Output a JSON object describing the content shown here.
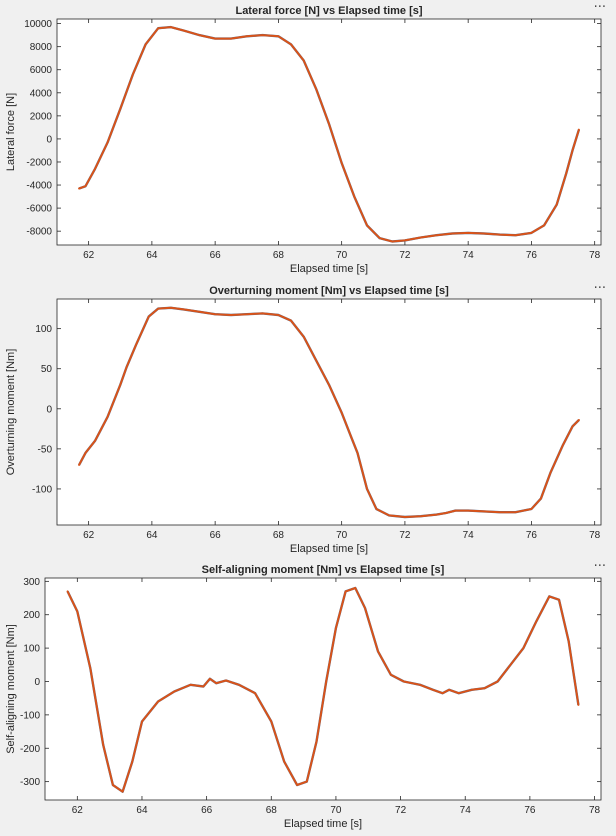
{
  "toolbar": {
    "more_label": "···"
  },
  "chart_data": [
    {
      "type": "line",
      "title": "Lateral force [N] vs Elapsed time [s]",
      "xlabel": "Elapsed time [s]",
      "ylabel": "Lateral force [N]",
      "xlim": [
        61,
        78.2
      ],
      "ylim": [
        -9200,
        10400
      ],
      "xticks": [
        62,
        64,
        66,
        68,
        70,
        72,
        74,
        76,
        78
      ],
      "yticks": [
        -8000,
        -6000,
        -4000,
        -2000,
        0,
        2000,
        4000,
        6000,
        8000,
        10000
      ],
      "grid": false,
      "series": [
        {
          "color": "#D95319",
          "x": [
            61.7,
            61.9,
            62.2,
            62.6,
            63.0,
            63.4,
            63.8,
            64.2,
            64.6,
            65.0,
            65.5,
            66.0,
            66.5,
            67.0,
            67.5,
            68.0,
            68.4,
            68.8,
            69.2,
            69.6,
            70.0,
            70.4,
            70.8,
            71.2,
            71.6,
            72.0,
            72.5,
            73.0,
            73.5,
            74.0,
            74.5,
            75.0,
            75.5,
            76.0,
            76.4,
            76.8,
            77.1,
            77.3,
            77.5
          ],
          "y": [
            -4300,
            -4100,
            -2600,
            -300,
            2600,
            5600,
            8200,
            9600,
            9700,
            9400,
            9000,
            8700,
            8700,
            8900,
            9000,
            8900,
            8200,
            6800,
            4300,
            1300,
            -2100,
            -5000,
            -7500,
            -8600,
            -8900,
            -8800,
            -8550,
            -8350,
            -8200,
            -8150,
            -8200,
            -8300,
            -8350,
            -8150,
            -7500,
            -5700,
            -3000,
            -1000,
            800
          ]
        }
      ]
    },
    {
      "type": "line",
      "title": "Overturning moment [Nm] vs Elapsed time [s]",
      "xlabel": "Elapsed time [s]",
      "ylabel": "Overturning moment [Nm]",
      "xlim": [
        61,
        78.2
      ],
      "ylim": [
        -145,
        137
      ],
      "xticks": [
        62,
        64,
        66,
        68,
        70,
        72,
        74,
        76,
        78
      ],
      "yticks": [
        -100,
        -50,
        0,
        50,
        100
      ],
      "grid": false,
      "series": [
        {
          "color": "#D95319",
          "x": [
            61.7,
            61.9,
            62.2,
            62.6,
            63.0,
            63.2,
            63.5,
            63.9,
            64.2,
            64.6,
            65.0,
            65.5,
            66.0,
            66.5,
            67.0,
            67.5,
            68.0,
            68.4,
            68.8,
            69.2,
            69.6,
            70.0,
            70.3,
            70.5,
            70.8,
            71.1,
            71.5,
            72.0,
            72.5,
            73.0,
            73.3,
            73.6,
            74.0,
            74.5,
            75.0,
            75.5,
            76.0,
            76.3,
            76.6,
            77.0,
            77.3,
            77.5
          ],
          "y": [
            -70,
            -55,
            -40,
            -10,
            30,
            52,
            80,
            115,
            125,
            126,
            124,
            121,
            118,
            117,
            118,
            119,
            117,
            110,
            90,
            60,
            30,
            -5,
            -35,
            -55,
            -100,
            -125,
            -133,
            -135,
            -134,
            -132,
            -130,
            -127,
            -127,
            -128,
            -129,
            -129,
            -125,
            -112,
            -80,
            -45,
            -22,
            -14
          ]
        }
      ]
    },
    {
      "type": "line",
      "title": "Self-aligning moment [Nm] vs Elapsed time [s]",
      "xlabel": "Elapsed time [s]",
      "ylabel": "Self-aligning moment [Nm]",
      "xlim": [
        61,
        78.2
      ],
      "ylim": [
        -355,
        310
      ],
      "xticks": [
        62,
        64,
        66,
        68,
        70,
        72,
        74,
        76,
        78
      ],
      "yticks": [
        -300,
        -200,
        -100,
        0,
        100,
        200,
        300
      ],
      "grid": false,
      "series": [
        {
          "color": "#D95319",
          "x": [
            61.7,
            62.0,
            62.4,
            62.8,
            63.1,
            63.4,
            63.7,
            64.0,
            64.5,
            65.0,
            65.5,
            65.9,
            66.1,
            66.3,
            66.6,
            67.0,
            67.5,
            68.0,
            68.4,
            68.8,
            69.1,
            69.4,
            69.7,
            70.0,
            70.3,
            70.6,
            70.9,
            71.3,
            71.7,
            72.1,
            72.6,
            73.0,
            73.3,
            73.5,
            73.8,
            74.2,
            74.6,
            75.0,
            75.4,
            75.8,
            76.2,
            76.6,
            76.9,
            77.2,
            77.5
          ],
          "y": [
            270,
            210,
            40,
            -190,
            -310,
            -330,
            -240,
            -120,
            -60,
            -30,
            -10,
            -15,
            8,
            -5,
            3,
            -10,
            -35,
            -120,
            -240,
            -310,
            -300,
            -180,
            0,
            160,
            270,
            280,
            220,
            90,
            20,
            0,
            -10,
            -25,
            -35,
            -25,
            -35,
            -25,
            -20,
            0,
            50,
            100,
            180,
            255,
            245,
            120,
            -70
          ]
        }
      ]
    }
  ]
}
